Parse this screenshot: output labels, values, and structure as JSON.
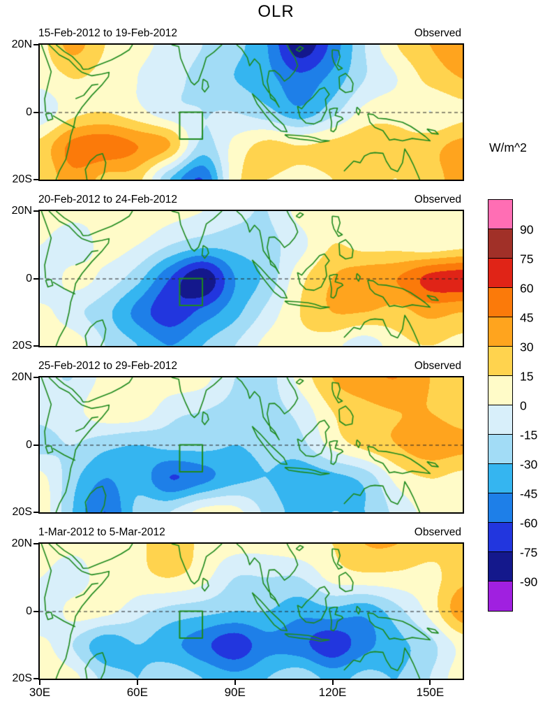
{
  "chart_data": {
    "type": "heatmap",
    "title": "OLR",
    "units": "W/m^2",
    "x_axis": {
      "label_ticks": [
        "30E",
        "60E",
        "90E",
        "120E",
        "150E"
      ],
      "tick_lons": [
        30,
        60,
        90,
        120,
        150
      ],
      "range_lon_deg_east": [
        30,
        160
      ]
    },
    "y_axis": {
      "label_ticks": [
        "20N",
        "0",
        "20S"
      ],
      "tick_lats": [
        20,
        0,
        -20
      ],
      "range_lat_deg_north": [
        -20,
        20
      ]
    },
    "levels": [
      -90,
      -75,
      -60,
      -45,
      -30,
      -15,
      0,
      15,
      30,
      45,
      60,
      75,
      90
    ],
    "palette_low_to_high": [
      "#A020E0",
      "#14188C",
      "#2236DE",
      "#1E7FE8",
      "#35B5F0",
      "#A2DCF6",
      "#D8EFFA",
      "#FFFBC8",
      "#FFD34E",
      "#FFA41E",
      "#FB7A0A",
      "#E02417",
      "#A13028",
      "#FF6EB4"
    ],
    "colorbar_tick_labels_top_to_bottom": [
      "90",
      "75",
      "60",
      "45",
      "30",
      "15",
      "0",
      "-15",
      "-30",
      "-45",
      "-60",
      "-75",
      "-90"
    ],
    "map_outline_color": "#1E8A1E",
    "equator_line": {
      "lat": 0,
      "style": "dashed"
    },
    "roi_box": {
      "lon": [
        73,
        80
      ],
      "lat": [
        -8,
        0
      ]
    },
    "grid_lon": [
      30,
      40,
      50,
      60,
      70,
      80,
      90,
      100,
      110,
      120,
      130,
      140,
      150,
      160
    ],
    "grid_lat": [
      20,
      10,
      0,
      -10,
      -20
    ],
    "panels": [
      {
        "label": "15-Feb-2012 to 19-Feb-2012",
        "source": "Observed",
        "values": [
          [
            10,
            35,
            15,
            5,
            -5,
            -15,
            -25,
            -45,
            -85,
            -55,
            -15,
            15,
            30,
            35
          ],
          [
            5,
            15,
            10,
            0,
            -10,
            -20,
            -30,
            -40,
            -55,
            -40,
            -15,
            0,
            20,
            30
          ],
          [
            -10,
            10,
            15,
            5,
            -10,
            -15,
            -15,
            -25,
            -40,
            -20,
            5,
            10,
            0,
            10
          ],
          [
            20,
            50,
            55,
            45,
            30,
            -20,
            5,
            20,
            15,
            20,
            25,
            20,
            25,
            35
          ],
          [
            15,
            40,
            25,
            20,
            -30,
            -60,
            10,
            15,
            10,
            15,
            20,
            15,
            25,
            35
          ]
        ]
      },
      {
        "label": "20-Feb-2012 to 24-Feb-2012",
        "source": "Observed",
        "values": [
          [
            10,
            5,
            5,
            10,
            5,
            0,
            -10,
            -15,
            5,
            10,
            5,
            10,
            10,
            10
          ],
          [
            0,
            -10,
            5,
            0,
            -15,
            -25,
            -25,
            -20,
            -5,
            15,
            10,
            10,
            5,
            10
          ],
          [
            -15,
            5,
            -5,
            -25,
            -60,
            -88,
            -45,
            -25,
            10,
            30,
            40,
            45,
            65,
            70
          ],
          [
            5,
            -10,
            -25,
            -50,
            -70,
            -55,
            -35,
            -10,
            15,
            30,
            30,
            25,
            35,
            30
          ],
          [
            10,
            10,
            -15,
            -30,
            -45,
            -30,
            -15,
            5,
            10,
            5,
            -10,
            10,
            15,
            10
          ]
        ]
      },
      {
        "label": "25-Feb-2012 to 29-Feb-2012",
        "source": "Observed",
        "values": [
          [
            -10,
            -15,
            5,
            10,
            10,
            5,
            -15,
            -20,
            5,
            30,
            40,
            45,
            30,
            15
          ],
          [
            -10,
            -5,
            10,
            10,
            -10,
            -15,
            -20,
            -20,
            -10,
            15,
            25,
            30,
            30,
            20
          ],
          [
            -20,
            -15,
            -25,
            -30,
            -25,
            -25,
            -30,
            -25,
            -20,
            5,
            20,
            30,
            40,
            35
          ],
          [
            5,
            -25,
            -45,
            -35,
            -60,
            -50,
            -35,
            -30,
            -40,
            -35,
            -25,
            5,
            15,
            10
          ],
          [
            10,
            -30,
            -60,
            -25,
            -15,
            5,
            5,
            -20,
            -35,
            -30,
            -30,
            -10,
            5,
            10
          ]
        ]
      },
      {
        "label": "1-Mar-2012 to 5-Mar-2012",
        "source": "Observed",
        "values": [
          [
            10,
            5,
            10,
            10,
            30,
            10,
            5,
            5,
            10,
            15,
            30,
            30,
            20,
            15
          ],
          [
            0,
            -10,
            10,
            10,
            15,
            5,
            -15,
            -15,
            -15,
            5,
            10,
            10,
            10,
            25
          ],
          [
            -15,
            5,
            5,
            -10,
            -20,
            -25,
            -30,
            -30,
            -40,
            -35,
            -40,
            -20,
            5,
            40
          ],
          [
            5,
            -15,
            -40,
            -30,
            -40,
            -55,
            -70,
            -50,
            -55,
            -70,
            -50,
            -35,
            -20,
            5
          ],
          [
            10,
            5,
            -20,
            -30,
            -20,
            -30,
            -40,
            -30,
            -20,
            -35,
            -25,
            -30,
            -15,
            10
          ]
        ]
      }
    ]
  }
}
